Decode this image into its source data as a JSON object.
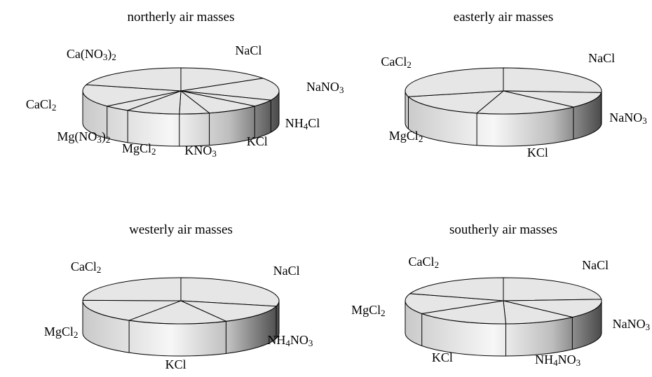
{
  "chart_data": [
    {
      "type": "pie",
      "title": "northerly air masses",
      "style": "3d",
      "slices": [
        {
          "label": "NaCl",
          "tex": "NaCl",
          "value": 3.2
        },
        {
          "label": "NaNO3",
          "tex": "NaNO_3",
          "value": 3.2
        },
        {
          "label": "NH4Cl",
          "tex": "NH_4Cl",
          "value": 1
        },
        {
          "label": "KCl",
          "tex": "KCl",
          "value": 1.8
        },
        {
          "label": "KNO3",
          "tex": "KNO_3",
          "value": 1
        },
        {
          "label": "MgCl2",
          "tex": "MgCl_2",
          "value": 1.8
        },
        {
          "label": "Mg(NO3)2",
          "tex": "Mg(NO_3)_2",
          "value": 0.9
        },
        {
          "label": "CaCl2",
          "tex": "CaCl_2",
          "value": 3.2
        },
        {
          "label": "Ca(NO3)2",
          "tex": "Ca(NO_3)_2",
          "value": 4.2
        }
      ]
    },
    {
      "type": "pie",
      "title": "easterly air masses",
      "style": "3d",
      "slices": [
        {
          "label": "NaCl",
          "tex": "NaCl",
          "value": 6.3
        },
        {
          "label": "NaNO3",
          "tex": "NaNO_3",
          "value": 2.7
        },
        {
          "label": "KCl",
          "tex": "KCl",
          "value": 4.1
        },
        {
          "label": "MgCl2",
          "tex": "MgCl_2",
          "value": 4
        },
        {
          "label": "CaCl2",
          "tex": "CaCl_2",
          "value": 7
        }
      ]
    },
    {
      "type": "pie",
      "title": "westerly air masses",
      "style": "3d",
      "slices": [
        {
          "label": "NaCl",
          "tex": "NaCl",
          "value": 7
        },
        {
          "label": "NH4NO3",
          "tex": "NH_4NO_3",
          "value": 3.3
        },
        {
          "label": "KCl",
          "tex": "KCl",
          "value": 4
        },
        {
          "label": "MgCl2",
          "tex": "MgCl_2",
          "value": 4
        },
        {
          "label": "CaCl2",
          "tex": "CaCl_2",
          "value": 6
        }
      ]
    },
    {
      "type": "pie",
      "title": "southerly air masses",
      "style": "3d",
      "slices": [
        {
          "label": "NaCl",
          "tex": "NaCl",
          "value": 6
        },
        {
          "label": "NaNO3",
          "tex": "NaNO_3",
          "value": 3.4
        },
        {
          "label": "NH4NO3",
          "tex": "NH_4NO_3",
          "value": 3
        },
        {
          "label": "KCl",
          "tex": "KCl",
          "value": 4
        },
        {
          "label": "MgCl2",
          "tex": "MgCl_2",
          "value": 3.6
        },
        {
          "label": "CaCl2",
          "tex": "CaCl_2",
          "value": 5
        }
      ]
    }
  ],
  "colors": {
    "top": "#e6e6e6",
    "side_light": "#f7f7f7",
    "side_mid": "#c9c9c9",
    "side_dark": "#4a4a4a",
    "stroke": "#000000"
  }
}
